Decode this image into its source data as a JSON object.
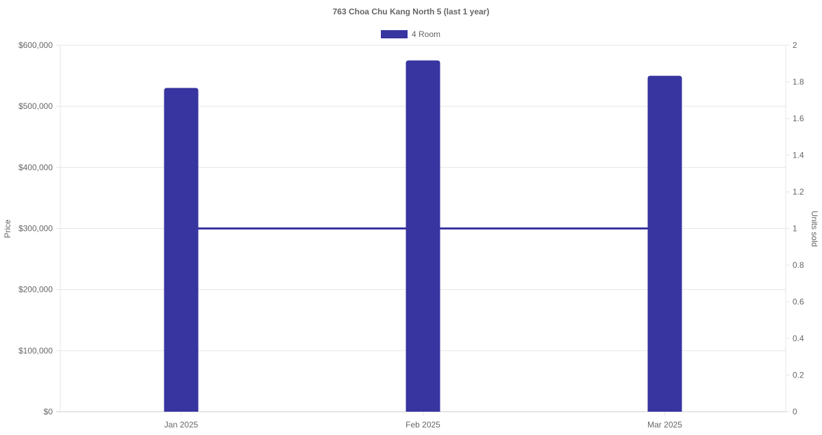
{
  "chart_data": {
    "type": "bar",
    "title": "763 Choa Chu Kang North 5 (last 1 year)",
    "categories": [
      "Jan 2025",
      "Feb 2025",
      "Mar 2025"
    ],
    "series": [
      {
        "name": "4 Room",
        "type": "bar",
        "axis": "left",
        "values": [
          530000,
          575000,
          550000
        ]
      },
      {
        "type": "line",
        "axis": "right",
        "values": [
          1,
          1,
          1
        ]
      }
    ],
    "ylabel": "Price",
    "y2label": "Units sold",
    "ylim": [
      0,
      600000
    ],
    "y2lim": [
      0,
      2
    ],
    "yticks": [
      "$0",
      "$100,000",
      "$200,000",
      "$300,000",
      "$400,000",
      "$500,000",
      "$600,000"
    ],
    "y2ticks": [
      "0",
      "0.2",
      "0.4",
      "0.6",
      "0.8",
      "1",
      "1.2",
      "1.4",
      "1.6",
      "1.8",
      "2"
    ],
    "legend": "top",
    "grid": true,
    "colors": {
      "series": "#3834a0",
      "grid": "#e5e5e5",
      "text": "#666666"
    }
  }
}
